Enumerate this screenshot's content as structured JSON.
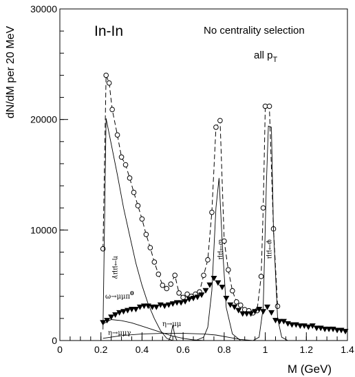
{
  "chart_data": {
    "type": "line",
    "ylabel": "dN/dM per 20 MeV",
    "xlabel": "M (GeV)",
    "xlim": [
      0,
      1.4
    ],
    "ylim": [
      0,
      30000
    ],
    "x_ticks": [
      "0",
      "0.2",
      "0.4",
      "0.6",
      "0.8",
      "1",
      "1.2",
      "1.4"
    ],
    "y_ticks": [
      "0",
      "10000",
      "20000",
      "30000"
    ],
    "grid": false,
    "annotations": {
      "system": "In-In",
      "centrality": "No centrality selection",
      "pt_main": "all p",
      "pt_sub": "T",
      "eta_dalitz": "η→μμγ",
      "omega_dalitz": "ω→μμπ",
      "omega_dalitz_sup": "0",
      "eta_mumu": "η→μμ",
      "eta_mumugamma_low": "η→μμγ",
      "omega_mumu": "ω→μμ",
      "phi_mumu": "φ→μμ"
    },
    "series": [
      {
        "role": "total-data-open-circles",
        "style": "dashed line with open circles",
        "points": [
          [
            0.21,
            8300
          ],
          [
            0.225,
            24000
          ],
          [
            0.24,
            23300
          ],
          [
            0.255,
            20900
          ],
          [
            0.28,
            18600
          ],
          [
            0.3,
            16600
          ],
          [
            0.32,
            15900
          ],
          [
            0.34,
            14700
          ],
          [
            0.36,
            13400
          ],
          [
            0.38,
            12200
          ],
          [
            0.4,
            11000
          ],
          [
            0.42,
            9600
          ],
          [
            0.44,
            8400
          ],
          [
            0.46,
            7100
          ],
          [
            0.48,
            6000
          ],
          [
            0.5,
            5000
          ],
          [
            0.52,
            4700
          ],
          [
            0.54,
            5100
          ],
          [
            0.56,
            5900
          ],
          [
            0.58,
            4300
          ],
          [
            0.6,
            3900
          ],
          [
            0.62,
            4200
          ],
          [
            0.64,
            4000
          ],
          [
            0.66,
            4200
          ],
          [
            0.68,
            4400
          ],
          [
            0.7,
            5900
          ],
          [
            0.72,
            7300
          ],
          [
            0.74,
            11600
          ],
          [
            0.76,
            19300
          ],
          [
            0.78,
            19900
          ],
          [
            0.8,
            9000
          ],
          [
            0.82,
            6400
          ],
          [
            0.84,
            4500
          ],
          [
            0.86,
            3500
          ],
          [
            0.88,
            3200
          ],
          [
            0.9,
            2800
          ],
          [
            0.92,
            2700
          ],
          [
            0.94,
            2500
          ],
          [
            0.96,
            2700
          ],
          [
            0.98,
            5800
          ],
          [
            0.99,
            12000
          ],
          [
            1.0,
            21200
          ],
          [
            1.02,
            21200
          ],
          [
            1.04,
            10100
          ],
          [
            1.06,
            3100
          ]
        ]
      },
      {
        "role": "data-minus-resonances-filled-triangles",
        "style": "filled down-pointing triangles",
        "points": [
          [
            0.21,
            1600
          ],
          [
            0.23,
            1800
          ],
          [
            0.25,
            2100
          ],
          [
            0.27,
            2300
          ],
          [
            0.29,
            2500
          ],
          [
            0.31,
            2600
          ],
          [
            0.33,
            2700
          ],
          [
            0.35,
            2800
          ],
          [
            0.37,
            2800
          ],
          [
            0.39,
            3000
          ],
          [
            0.41,
            3100
          ],
          [
            0.43,
            3100
          ],
          [
            0.45,
            3000
          ],
          [
            0.47,
            3000
          ],
          [
            0.49,
            3200
          ],
          [
            0.51,
            3100
          ],
          [
            0.53,
            3200
          ],
          [
            0.55,
            3300
          ],
          [
            0.57,
            3400
          ],
          [
            0.59,
            3400
          ],
          [
            0.61,
            3500
          ],
          [
            0.63,
            3700
          ],
          [
            0.65,
            3800
          ],
          [
            0.67,
            3900
          ],
          [
            0.69,
            4100
          ],
          [
            0.71,
            4500
          ],
          [
            0.73,
            5000
          ],
          [
            0.75,
            5600
          ],
          [
            0.77,
            5200
          ],
          [
            0.79,
            4800
          ],
          [
            0.81,
            3800
          ],
          [
            0.83,
            3200
          ],
          [
            0.85,
            3000
          ],
          [
            0.87,
            2700
          ],
          [
            0.89,
            2400
          ],
          [
            0.91,
            2400
          ],
          [
            0.93,
            2400
          ],
          [
            0.95,
            2600
          ],
          [
            0.97,
            2800
          ],
          [
            0.99,
            2600
          ],
          [
            1.01,
            3000
          ],
          [
            1.03,
            2500
          ],
          [
            1.05,
            1800
          ],
          [
            1.07,
            1700
          ],
          [
            1.09,
            1700
          ],
          [
            1.11,
            1500
          ],
          [
            1.13,
            1400
          ],
          [
            1.15,
            1400
          ],
          [
            1.17,
            1300
          ],
          [
            1.19,
            1300
          ],
          [
            1.21,
            1200
          ],
          [
            1.23,
            1300
          ],
          [
            1.25,
            1100
          ],
          [
            1.27,
            1100
          ],
          [
            1.29,
            1000
          ],
          [
            1.31,
            1000
          ],
          [
            1.33,
            1000
          ],
          [
            1.35,
            900
          ],
          [
            1.37,
            900
          ],
          [
            1.39,
            800
          ]
        ]
      },
      {
        "role": "eta-dalitz",
        "style": "solid thin line",
        "points": [
          [
            0.21,
            1000
          ],
          [
            0.225,
            20100
          ],
          [
            0.25,
            17800
          ],
          [
            0.28,
            15000
          ],
          [
            0.31,
            12000
          ],
          [
            0.34,
            9500
          ],
          [
            0.37,
            7000
          ],
          [
            0.4,
            5000
          ],
          [
            0.43,
            3300
          ],
          [
            0.46,
            2000
          ],
          [
            0.49,
            900
          ],
          [
            0.52,
            200
          ],
          [
            0.55,
            0
          ]
        ]
      },
      {
        "role": "omega-mumu",
        "style": "solid thin line",
        "points": [
          [
            0.66,
            0
          ],
          [
            0.7,
            300
          ],
          [
            0.72,
            1200
          ],
          [
            0.74,
            4500
          ],
          [
            0.76,
            12000
          ],
          [
            0.775,
            14700
          ],
          [
            0.79,
            9000
          ],
          [
            0.81,
            3000
          ],
          [
            0.84,
            600
          ],
          [
            0.88,
            0
          ]
        ]
      },
      {
        "role": "phi-mumu",
        "style": "solid thin line",
        "points": [
          [
            0.94,
            0
          ],
          [
            0.97,
            300
          ],
          [
            0.99,
            3000
          ],
          [
            1.005,
            14000
          ],
          [
            1.015,
            19400
          ],
          [
            1.03,
            19300
          ],
          [
            1.04,
            10000
          ],
          [
            1.06,
            2000
          ],
          [
            1.08,
            300
          ],
          [
            1.11,
            0
          ]
        ]
      },
      {
        "role": "omega-dalitz",
        "style": "solid thin line",
        "points": [
          [
            0.21,
            1500
          ],
          [
            0.25,
            1900
          ],
          [
            0.3,
            1800
          ],
          [
            0.35,
            1600
          ],
          [
            0.4,
            1300
          ],
          [
            0.45,
            1000
          ],
          [
            0.5,
            700
          ],
          [
            0.55,
            400
          ],
          [
            0.6,
            200
          ],
          [
            0.65,
            60
          ],
          [
            0.7,
            0
          ]
        ]
      },
      {
        "role": "eta-mumu",
        "style": "solid thin line",
        "points": [
          [
            0.53,
            0
          ],
          [
            0.54,
            400
          ],
          [
            0.55,
            1400
          ],
          [
            0.56,
            400
          ],
          [
            0.57,
            0
          ]
        ]
      },
      {
        "role": "eta-prime-dalitz",
        "style": "solid thin line",
        "points": [
          [
            0.21,
            200
          ],
          [
            0.3,
            450
          ],
          [
            0.4,
            600
          ],
          [
            0.5,
            650
          ],
          [
            0.6,
            650
          ],
          [
            0.7,
            600
          ],
          [
            0.76,
            500
          ],
          [
            0.82,
            300
          ],
          [
            0.88,
            100
          ],
          [
            0.94,
            0
          ]
        ]
      }
    ]
  }
}
